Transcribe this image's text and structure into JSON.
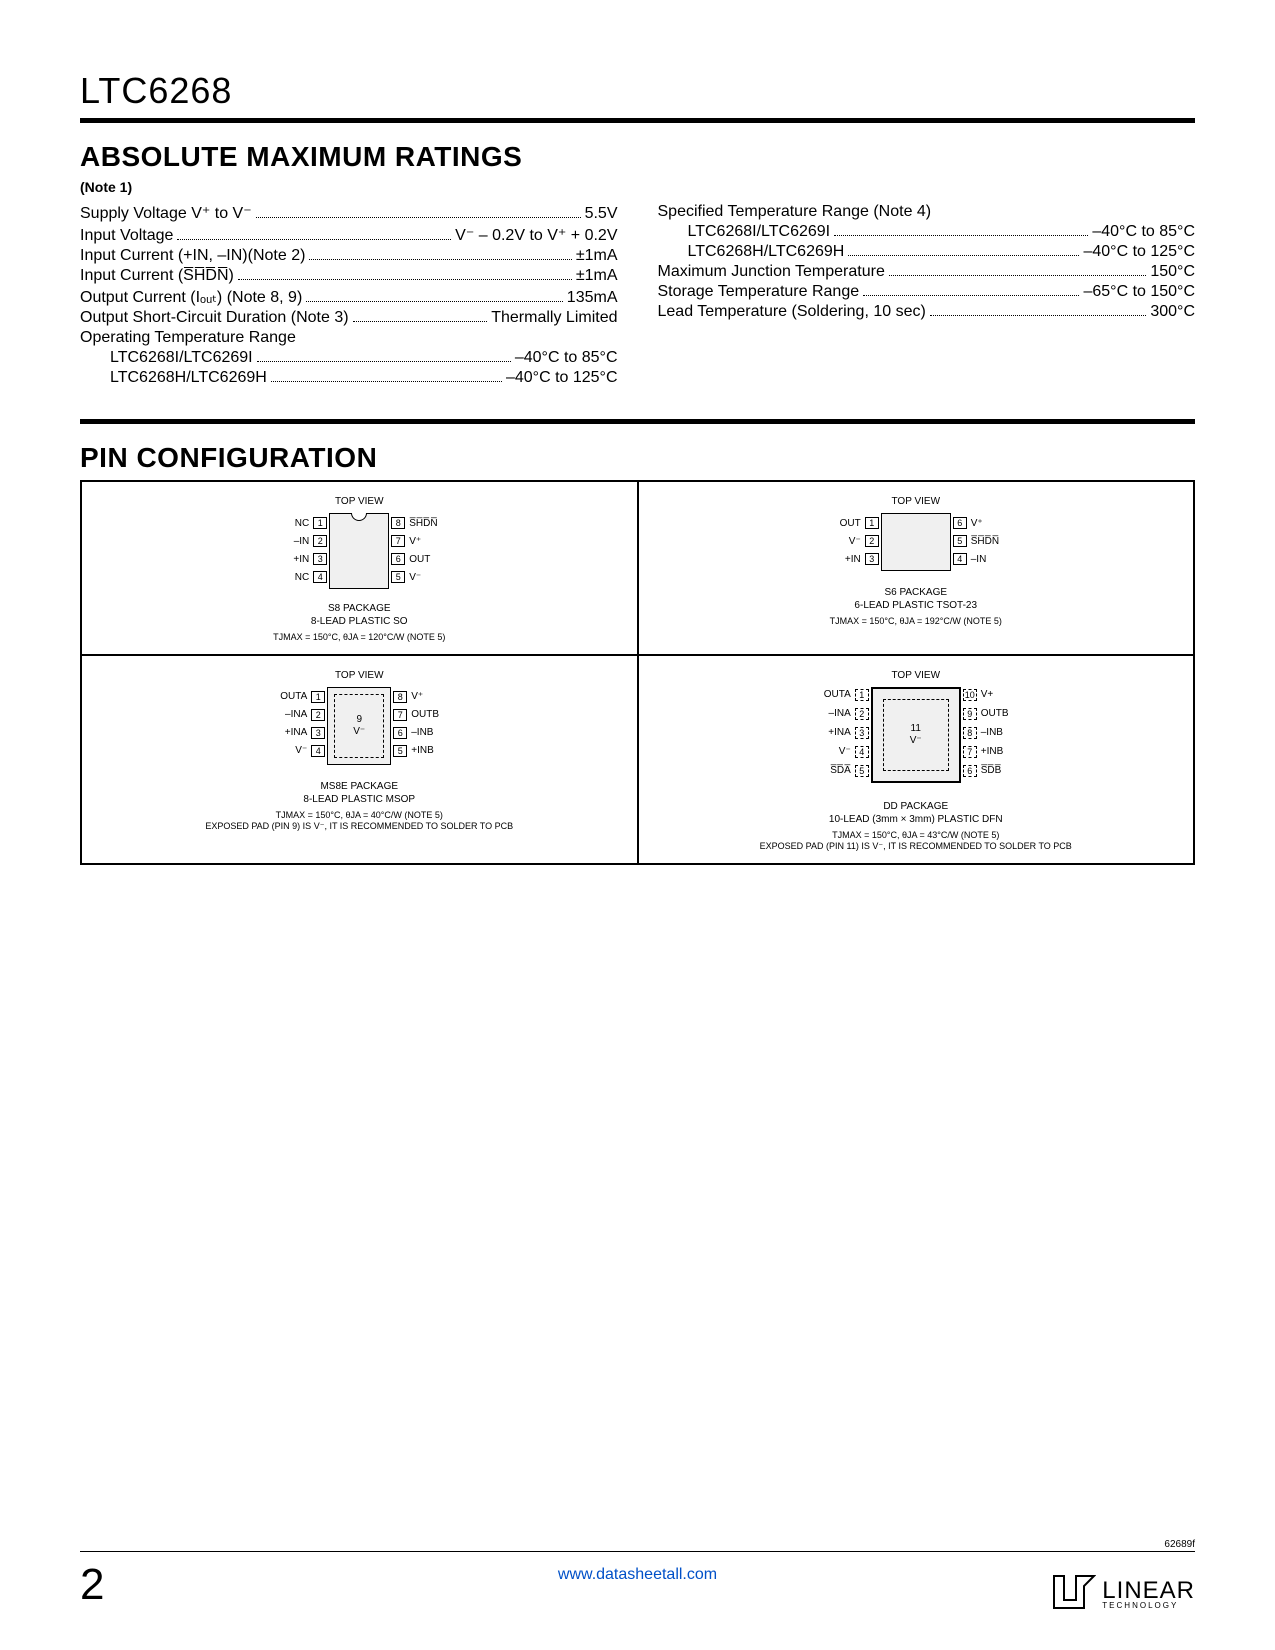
{
  "part_number": "LTC6268",
  "section1_title": "ABSOLUTE MAXIMUM RATINGS",
  "note1": "(Note 1)",
  "ratings_left": [
    {
      "label": "Supply Voltage V⁺ to V⁻",
      "value": "5.5V",
      "indent": false
    },
    {
      "label": "Input Voltage",
      "value": "V⁻ – 0.2V to V⁺ + 0.2V",
      "indent": false
    },
    {
      "label": "Input Current (+IN, –IN)(Note 2)",
      "value": "±1mA",
      "indent": false
    },
    {
      "label": "Input Current (S̅H̅D̅N̅)",
      "value": "±1mA",
      "indent": false
    },
    {
      "label": "Output Current (Iₒᵤₜ) (Note 8, 9)",
      "value": "135mA",
      "indent": false
    },
    {
      "label": "Output Short-Circuit Duration (Note 3)",
      "value": "Thermally Limited",
      "indent": false
    },
    {
      "label": "Operating Temperature Range",
      "value": "",
      "indent": false,
      "nodots": true
    },
    {
      "label": "LTC6268I/LTC6269I",
      "value": "–40°C to 85°C",
      "indent": true
    },
    {
      "label": "LTC6268H/LTC6269H",
      "value": "–40°C to 125°C",
      "indent": true
    }
  ],
  "ratings_right": [
    {
      "label": "Specified Temperature Range (Note 4)",
      "value": "",
      "indent": false,
      "nodots": true
    },
    {
      "label": "LTC6268I/LTC6269I",
      "value": "–40°C to 85°C",
      "indent": true
    },
    {
      "label": "LTC6268H/LTC6269H",
      "value": "–40°C to 125°C",
      "indent": true
    },
    {
      "label": "Maximum Junction Temperature",
      "value": "150°C",
      "indent": false
    },
    {
      "label": "Storage Temperature Range",
      "value": "–65°C to 150°C",
      "indent": false
    },
    {
      "label": "Lead Temperature (Soldering, 10 sec)",
      "value": "300°C",
      "indent": false
    }
  ],
  "section2_title": "PIN CONFIGURATION",
  "packages": {
    "s8": {
      "top_view": "TOP VIEW",
      "name": "S8 PACKAGE",
      "desc": "8-LEAD PLASTIC SO",
      "note": "TJMAX = 150°C, θJA = 120°C/W (NOTE 5)",
      "left_pins": [
        {
          "n": "1",
          "l": "NC"
        },
        {
          "n": "2",
          "l": "–IN"
        },
        {
          "n": "3",
          "l": "+IN"
        },
        {
          "n": "4",
          "l": "NC"
        }
      ],
      "right_pins": [
        {
          "n": "8",
          "l": "S̅H̅D̅N̅"
        },
        {
          "n": "7",
          "l": "V⁺"
        },
        {
          "n": "6",
          "l": "OUT"
        },
        {
          "n": "5",
          "l": "V⁻"
        }
      ]
    },
    "s6": {
      "top_view": "TOP VIEW",
      "name": "S6 PACKAGE",
      "desc": "6-LEAD PLASTIC TSOT-23",
      "note": "TJMAX = 150°C, θJA = 192°C/W (NOTE 5)",
      "left_pins": [
        {
          "n": "1",
          "l": "OUT"
        },
        {
          "n": "2",
          "l": "V⁻"
        },
        {
          "n": "3",
          "l": "+IN"
        }
      ],
      "right_pins": [
        {
          "n": "6",
          "l": "V⁺"
        },
        {
          "n": "5",
          "l": "S̅H̅D̅N̅"
        },
        {
          "n": "4",
          "l": "–IN"
        }
      ]
    },
    "ms8e": {
      "top_view": "TOP VIEW",
      "name": "MS8E PACKAGE",
      "desc": "8-LEAD PLASTIC MSOP",
      "note": "TJMAX = 150°C, θJA = 40°C/W (NOTE 5)",
      "note2": "EXPOSED PAD (PIN 9) IS V⁻, IT IS RECOMMENDED TO SOLDER TO PCB",
      "center": "9\nV⁻",
      "left_pins": [
        {
          "n": "1",
          "l": "OUTA"
        },
        {
          "n": "2",
          "l": "–INA"
        },
        {
          "n": "3",
          "l": "+INA"
        },
        {
          "n": "4",
          "l": "V⁻"
        }
      ],
      "right_pins": [
        {
          "n": "8",
          "l": "V⁺"
        },
        {
          "n": "7",
          "l": "OUTB"
        },
        {
          "n": "6",
          "l": "–INB"
        },
        {
          "n": "5",
          "l": "+INB"
        }
      ]
    },
    "dd": {
      "top_view": "TOP VIEW",
      "name": "DD PACKAGE",
      "desc": "10-LEAD (3mm × 3mm) PLASTIC DFN",
      "note": "TJMAX = 150°C, θJA = 43°C/W (NOTE 5)",
      "note2": "EXPOSED PAD (PIN 11) IS V⁻, IT IS RECOMMENDED TO SOLDER TO PCB",
      "center": "11\nV⁻",
      "left_pins": [
        {
          "n": "1",
          "l": "OUTA"
        },
        {
          "n": "2",
          "l": "–INA"
        },
        {
          "n": "3",
          "l": "+INA"
        },
        {
          "n": "4",
          "l": "V⁻"
        },
        {
          "n": "5",
          "l": "S̅D̅A̅"
        }
      ],
      "right_pins": [
        {
          "n": "10",
          "l": "V+"
        },
        {
          "n": "9",
          "l": "OUTB"
        },
        {
          "n": "8",
          "l": "–INB"
        },
        {
          "n": "7",
          "l": "+INB"
        },
        {
          "n": "6",
          "l": "S̅D̅B̅"
        }
      ]
    }
  },
  "doc_id": "62689f",
  "page_number": "2",
  "url": "www.datasheetall.com",
  "logo_text": "LINEAR",
  "logo_sub": "TECHNOLOGY"
}
